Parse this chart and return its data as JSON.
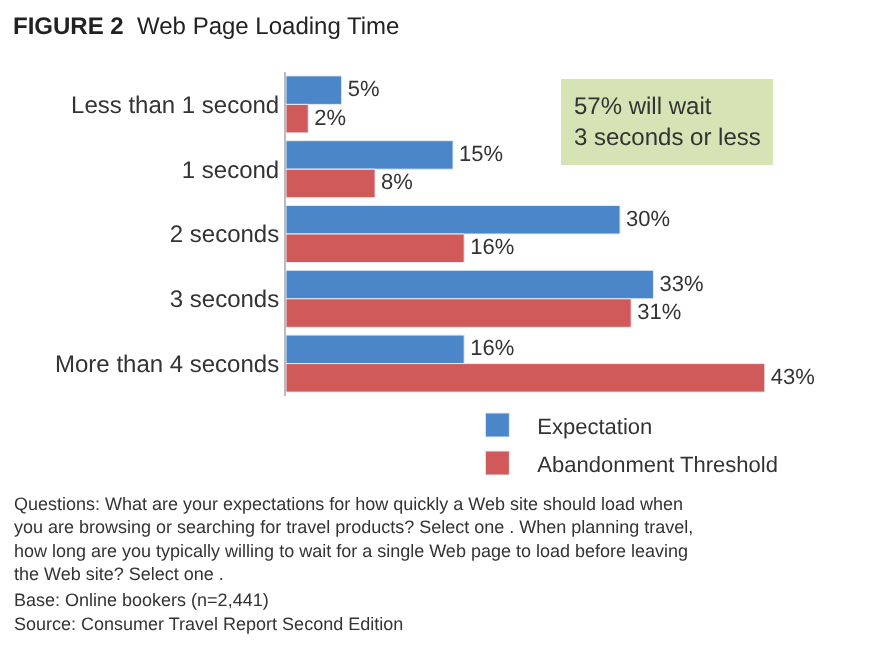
{
  "chart_data": {
    "type": "bar",
    "orientation": "horizontal",
    "title": "FIGURE 2",
    "subtitle": "Web Page Loading Time",
    "categories": [
      "Less than 1 second",
      "1 second",
      "2 seconds",
      "3 seconds",
      "More than 4 seconds"
    ],
    "series": [
      {
        "name": "Expectation",
        "color": "#4a86c8",
        "values": [
          5,
          15,
          30,
          33,
          16
        ],
        "value_labels": [
          "5%",
          "15%",
          "30%",
          "33%",
          "16%"
        ]
      },
      {
        "name": "Abandonment Threshold",
        "color": "#d0595a",
        "values": [
          2,
          8,
          16,
          31,
          43
        ],
        "value_labels": [
          "2%",
          "8%",
          "16%",
          "31%",
          "43%"
        ]
      }
    ],
    "tick_labels": "y",
    "legend": "bottom right",
    "annotations": [
      "57% will wait\n3 seconds or less",
      "Questions: What are your expectations for how quickly a Web site should load when\nyou are browsing or searching for travel products? Select one . When planning travel,\nhow long are you typically willing to wait for a single Web page to load before leaving\nthe Web site? Select one .",
      "Base: Online bookers (n=2,441)",
      "Source: Consumer Travel Report Second Edition"
    ]
  }
}
